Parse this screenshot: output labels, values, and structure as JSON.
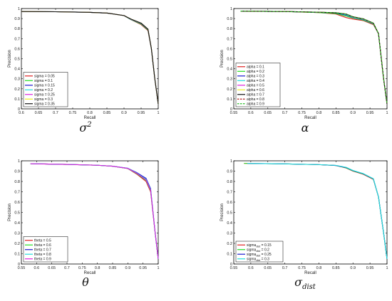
{
  "chart_data": [
    {
      "type": "line",
      "caption": "σ",
      "caption_sup": "2",
      "caption_sub": "",
      "xlabel": "Recall",
      "ylabel": "Precision",
      "xlim": [
        0.6,
        1.0
      ],
      "ylim": [
        0,
        1
      ],
      "xticks": [
        "0.6",
        "0.65",
        "0.7",
        "0.75",
        "0.8",
        "0.85",
        "0.9",
        "0.95",
        "1"
      ],
      "yticks": [
        "0",
        "0.1",
        "0.2",
        "0.3",
        "0.4",
        "0.5",
        "0.6",
        "0.7",
        "0.8",
        "0.9",
        "1"
      ],
      "grid": false,
      "legend_position": "lower-left",
      "series": [
        {
          "name": "sigma = 0.05",
          "color": "#e02020",
          "dash": "solid",
          "x": [
            0.6,
            0.7,
            0.8,
            0.85,
            0.9,
            0.92,
            0.95,
            0.97,
            0.98,
            0.99,
            1.0
          ],
          "y": [
            0.97,
            0.968,
            0.962,
            0.955,
            0.93,
            0.89,
            0.84,
            0.78,
            0.6,
            0.3,
            0.05
          ]
        },
        {
          "name": "sigma = 0.1",
          "color": "#22dd22",
          "dash": "solid",
          "x": [
            0.6,
            0.7,
            0.8,
            0.85,
            0.9,
            0.92,
            0.95,
            0.97,
            0.98,
            0.99,
            1.0
          ],
          "y": [
            0.97,
            0.968,
            0.962,
            0.955,
            0.93,
            0.89,
            0.845,
            0.785,
            0.6,
            0.3,
            0.05
          ]
        },
        {
          "name": "sigma = 0.15",
          "color": "#1a1ad0",
          "dash": "solid",
          "x": [
            0.6,
            0.7,
            0.8,
            0.85,
            0.9,
            0.92,
            0.95,
            0.97,
            0.98,
            0.99,
            1.0
          ],
          "y": [
            0.97,
            0.968,
            0.962,
            0.955,
            0.93,
            0.892,
            0.85,
            0.79,
            0.6,
            0.3,
            0.05
          ]
        },
        {
          "name": "sigma = 0.2",
          "color": "#22dddd",
          "dash": "solid",
          "x": [
            0.6,
            0.7,
            0.8,
            0.85,
            0.9,
            0.92,
            0.95,
            0.97,
            0.98,
            0.99,
            1.0
          ],
          "y": [
            0.97,
            0.968,
            0.962,
            0.955,
            0.93,
            0.893,
            0.852,
            0.792,
            0.6,
            0.3,
            0.05
          ]
        },
        {
          "name": "sigma = 0.25",
          "color": "#dd22dd",
          "dash": "solid",
          "x": [
            0.6,
            0.7,
            0.8,
            0.85,
            0.9,
            0.92,
            0.95,
            0.97,
            0.98,
            0.99,
            1.0
          ],
          "y": [
            0.97,
            0.968,
            0.962,
            0.955,
            0.93,
            0.894,
            0.853,
            0.793,
            0.6,
            0.3,
            0.05
          ]
        },
        {
          "name": "sigma = 0.3",
          "color": "#eeee22",
          "dash": "solid",
          "x": [
            0.6,
            0.7,
            0.8,
            0.85,
            0.9,
            0.92,
            0.95,
            0.97,
            0.98,
            0.99,
            1.0
          ],
          "y": [
            0.97,
            0.968,
            0.962,
            0.955,
            0.93,
            0.895,
            0.855,
            0.795,
            0.6,
            0.3,
            0.05
          ]
        },
        {
          "name": "sigma = 0.35",
          "color": "#111111",
          "dash": "solid",
          "x": [
            0.6,
            0.7,
            0.8,
            0.85,
            0.9,
            0.92,
            0.95,
            0.97,
            0.98,
            0.99,
            1.0
          ],
          "y": [
            0.97,
            0.968,
            0.962,
            0.955,
            0.93,
            0.895,
            0.855,
            0.795,
            0.6,
            0.3,
            0.05
          ]
        }
      ]
    },
    {
      "type": "line",
      "caption": "α",
      "caption_sup": "",
      "caption_sub": "",
      "xlabel": "Recall",
      "ylabel": "Precision",
      "xlim": [
        0.55,
        1.0
      ],
      "ylim": [
        0,
        1
      ],
      "xticks": [
        "0.55",
        "0.6",
        "0.65",
        "0.7",
        "0.75",
        "0.8",
        "0.85",
        "0.9",
        "0.95",
        "1"
      ],
      "yticks": [
        "0",
        "0.1",
        "0.2",
        "0.3",
        "0.4",
        "0.5",
        "0.6",
        "0.7",
        "0.8",
        "0.9",
        "1"
      ],
      "grid": false,
      "legend_position": "lower-left",
      "series": [
        {
          "name": "alpha = 0.1",
          "color": "#e02020",
          "dash": "solid",
          "x": [
            0.57,
            0.7,
            0.8,
            0.85,
            0.88,
            0.9,
            0.93,
            0.96,
            0.975,
            0.99,
            1.0
          ],
          "y": [
            0.975,
            0.97,
            0.96,
            0.945,
            0.91,
            0.895,
            0.88,
            0.84,
            0.75,
            0.3,
            0.05
          ]
        },
        {
          "name": "alpha = 0.2",
          "color": "#22dd22",
          "dash": "solid",
          "x": [
            0.57,
            0.7,
            0.8,
            0.85,
            0.88,
            0.9,
            0.93,
            0.96,
            0.975,
            0.99,
            1.0
          ],
          "y": [
            0.975,
            0.97,
            0.96,
            0.95,
            0.925,
            0.905,
            0.885,
            0.845,
            0.75,
            0.3,
            0.05
          ]
        },
        {
          "name": "alpha = 0.3",
          "color": "#1a1ad0",
          "dash": "solid",
          "x": [
            0.57,
            0.7,
            0.8,
            0.85,
            0.88,
            0.9,
            0.93,
            0.96,
            0.975,
            0.99,
            1.0
          ],
          "y": [
            0.975,
            0.97,
            0.962,
            0.955,
            0.935,
            0.91,
            0.89,
            0.848,
            0.75,
            0.3,
            0.05
          ]
        },
        {
          "name": "alpha = 0.4",
          "color": "#22dddd",
          "dash": "solid",
          "x": [
            0.57,
            0.7,
            0.8,
            0.85,
            0.88,
            0.9,
            0.93,
            0.96,
            0.975,
            0.99,
            1.0
          ],
          "y": [
            0.975,
            0.97,
            0.962,
            0.957,
            0.94,
            0.912,
            0.892,
            0.85,
            0.75,
            0.3,
            0.05
          ]
        },
        {
          "name": "alpha = 0.5",
          "color": "#dd22dd",
          "dash": "solid",
          "x": [
            0.57,
            0.7,
            0.8,
            0.85,
            0.88,
            0.9,
            0.93,
            0.96,
            0.975,
            0.99,
            1.0
          ],
          "y": [
            0.975,
            0.97,
            0.963,
            0.958,
            0.945,
            0.915,
            0.895,
            0.852,
            0.75,
            0.3,
            0.05
          ]
        },
        {
          "name": "alpha = 0.6",
          "color": "#eeee22",
          "dash": "solid",
          "x": [
            0.57,
            0.7,
            0.8,
            0.85,
            0.88,
            0.9,
            0.93,
            0.96,
            0.975,
            0.99,
            1.0
          ],
          "y": [
            0.975,
            0.97,
            0.963,
            0.958,
            0.945,
            0.917,
            0.897,
            0.853,
            0.75,
            0.3,
            0.05
          ]
        },
        {
          "name": "alpha = 0.7",
          "color": "#111111",
          "dash": "solid",
          "x": [
            0.57,
            0.7,
            0.8,
            0.85,
            0.88,
            0.9,
            0.93,
            0.96,
            0.975,
            0.99,
            1.0
          ],
          "y": [
            0.975,
            0.97,
            0.963,
            0.958,
            0.945,
            0.918,
            0.898,
            0.855,
            0.75,
            0.3,
            0.05
          ]
        },
        {
          "name": "alpha = 0.8",
          "color": "#b01818",
          "dash": "dashed",
          "x": [
            0.57,
            0.7,
            0.8,
            0.85,
            0.88,
            0.9,
            0.93,
            0.96,
            0.975,
            0.99,
            1.0
          ],
          "y": [
            0.975,
            0.97,
            0.963,
            0.958,
            0.945,
            0.918,
            0.898,
            0.855,
            0.75,
            0.3,
            0.05
          ]
        },
        {
          "name": "alpha = 0.9",
          "color": "#22bb22",
          "dash": "dashed",
          "x": [
            0.57,
            0.7,
            0.8,
            0.85,
            0.88,
            0.9,
            0.93,
            0.96,
            0.975,
            0.99,
            1.0
          ],
          "y": [
            0.975,
            0.97,
            0.963,
            0.958,
            0.945,
            0.918,
            0.898,
            0.855,
            0.75,
            0.3,
            0.05
          ]
        }
      ]
    },
    {
      "type": "line",
      "caption": "θ",
      "caption_sup": "",
      "caption_sub": "",
      "xlabel": "Recall",
      "ylabel": "Precision",
      "xlim": [
        0.55,
        1.0
      ],
      "ylim": [
        0,
        1
      ],
      "xticks": [
        "0.55",
        "0.6",
        "0.65",
        "0.7",
        "0.75",
        "0.8",
        "0.85",
        "0.9",
        "0.95",
        "1"
      ],
      "yticks": [
        "0",
        "0.1",
        "0.2",
        "0.3",
        "0.4",
        "0.5",
        "0.6",
        "0.7",
        "0.8",
        "0.9",
        "1"
      ],
      "grid": false,
      "legend_position": "lower-left",
      "series": [
        {
          "name": "theta = 0.5",
          "color": "#e02020",
          "dash": "solid",
          "x": [
            0.58,
            0.7,
            0.8,
            0.85,
            0.9,
            0.93,
            0.96,
            0.975,
            0.99,
            1.0
          ],
          "y": [
            0.972,
            0.965,
            0.957,
            0.948,
            0.925,
            0.87,
            0.8,
            0.7,
            0.3,
            0.05
          ]
        },
        {
          "name": "theta = 0.6",
          "color": "#22dd22",
          "dash": "solid",
          "x": [
            0.58,
            0.7,
            0.8,
            0.85,
            0.9,
            0.93,
            0.96,
            0.975,
            0.99,
            1.0
          ],
          "y": [
            0.972,
            0.965,
            0.957,
            0.948,
            0.925,
            0.875,
            0.81,
            0.71,
            0.3,
            0.05
          ]
        },
        {
          "name": "theta = 0.7",
          "color": "#1a1ad0",
          "dash": "solid",
          "x": [
            0.58,
            0.7,
            0.8,
            0.85,
            0.9,
            0.93,
            0.96,
            0.975,
            0.99,
            1.0
          ],
          "y": [
            0.972,
            0.965,
            0.957,
            0.948,
            0.928,
            0.885,
            0.83,
            0.73,
            0.3,
            0.05
          ]
        },
        {
          "name": "theta = 0.8",
          "color": "#22dddd",
          "dash": "solid",
          "x": [
            0.58,
            0.7,
            0.8,
            0.85,
            0.9,
            0.93,
            0.96,
            0.975,
            0.99,
            1.0
          ],
          "y": [
            0.972,
            0.965,
            0.957,
            0.948,
            0.927,
            0.88,
            0.82,
            0.72,
            0.3,
            0.05
          ]
        },
        {
          "name": "theta = 0.9",
          "color": "#dd22dd",
          "dash": "solid",
          "x": [
            0.58,
            0.7,
            0.8,
            0.85,
            0.9,
            0.93,
            0.96,
            0.975,
            0.99,
            1.0
          ],
          "y": [
            0.972,
            0.965,
            0.957,
            0.948,
            0.926,
            0.878,
            0.815,
            0.715,
            0.3,
            0.05
          ]
        }
      ]
    },
    {
      "type": "line",
      "caption": "σ",
      "caption_sup": "",
      "caption_sub": "dist",
      "xlabel": "Recall",
      "ylabel": "Precision",
      "xlim": [
        0.55,
        1.0
      ],
      "ylim": [
        0,
        1
      ],
      "xticks": [
        "0.55",
        "0.6",
        "0.65",
        "0.7",
        "0.75",
        "0.8",
        "0.85",
        "0.9",
        "0.95",
        "1"
      ],
      "yticks": [
        "0",
        "0.1",
        "0.2",
        "0.3",
        "0.4",
        "0.5",
        "0.6",
        "0.7",
        "0.8",
        "0.9",
        "1"
      ],
      "grid": false,
      "legend_position": "lower-left",
      "series": [
        {
          "name": "sigma",
          "name_sub": "dist",
          "name_suffix": " = 0.15",
          "color": "#e02020",
          "dash": "solid",
          "x": [
            0.58,
            0.7,
            0.8,
            0.85,
            0.88,
            0.9,
            0.93,
            0.96,
            0.975,
            0.99,
            1.0
          ],
          "y": [
            0.975,
            0.97,
            0.963,
            0.955,
            0.93,
            0.9,
            0.87,
            0.82,
            0.65,
            0.3,
            0.05
          ]
        },
        {
          "name": "sigma",
          "name_sub": "dist",
          "name_suffix": " = 0.2",
          "color": "#22dd22",
          "dash": "solid",
          "x": [
            0.58,
            0.7,
            0.8,
            0.85,
            0.88,
            0.9,
            0.93,
            0.96,
            0.975,
            0.99,
            1.0
          ],
          "y": [
            0.975,
            0.97,
            0.963,
            0.955,
            0.932,
            0.903,
            0.873,
            0.823,
            0.65,
            0.3,
            0.05
          ]
        },
        {
          "name": "sigma",
          "name_sub": "dist",
          "name_suffix": " = 0.25",
          "color": "#1a1ad0",
          "dash": "solid",
          "x": [
            0.59,
            0.7,
            0.8,
            0.85,
            0.88,
            0.9,
            0.93,
            0.96,
            0.975,
            0.99,
            1.0
          ],
          "y": [
            0.975,
            0.97,
            0.963,
            0.955,
            0.935,
            0.905,
            0.875,
            0.825,
            0.65,
            0.3,
            0.05
          ]
        },
        {
          "name": "sigma",
          "name_sub": "dist",
          "name_suffix": " = 0.3",
          "color": "#22dddd",
          "dash": "solid",
          "x": [
            0.59,
            0.7,
            0.8,
            0.85,
            0.88,
            0.9,
            0.93,
            0.96,
            0.975,
            0.99,
            1.0
          ],
          "y": [
            0.975,
            0.97,
            0.963,
            0.956,
            0.937,
            0.907,
            0.877,
            0.827,
            0.65,
            0.3,
            0.05
          ]
        }
      ]
    }
  ]
}
